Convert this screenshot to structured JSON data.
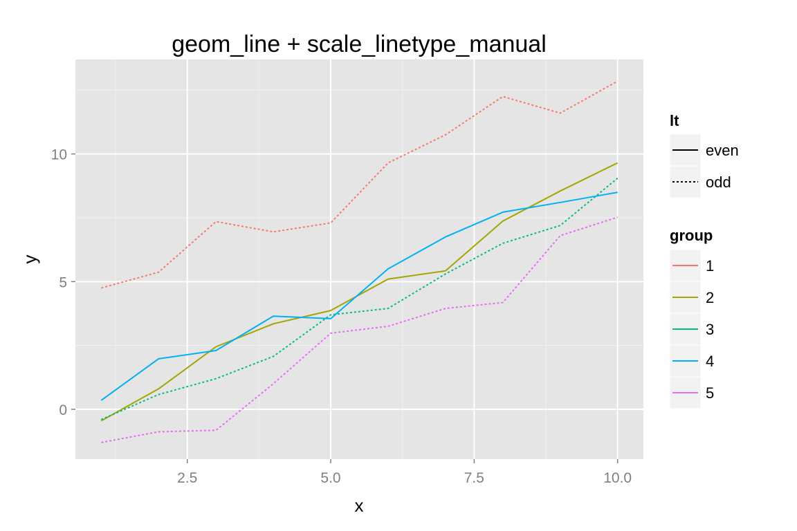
{
  "chart_data": {
    "type": "line",
    "title": "geom_line + scale_linetype_manual",
    "xlabel": "x",
    "ylabel": "y",
    "xlim": [
      0.55,
      10.45
    ],
    "ylim": [
      -1.95,
      13.7
    ],
    "x_ticks": [
      2.5,
      5.0,
      7.5,
      10.0
    ],
    "x_tick_labels": [
      "2.5",
      "5.0",
      "7.5",
      "10.0"
    ],
    "y_ticks": [
      0,
      5,
      10
    ],
    "y_tick_labels": [
      "0",
      "5",
      "10"
    ],
    "grid": true,
    "x": [
      1,
      2,
      3,
      4,
      5,
      6,
      7,
      8,
      9,
      10
    ],
    "series": [
      {
        "name": "1",
        "linetype": "odd",
        "color": "#F8766D",
        "values": [
          4.75,
          5.37,
          7.35,
          6.95,
          7.3,
          9.65,
          10.75,
          12.25,
          11.6,
          12.85
        ]
      },
      {
        "name": "2",
        "linetype": "even",
        "color": "#A3A500",
        "values": [
          -0.45,
          0.8,
          2.45,
          3.35,
          3.87,
          5.1,
          5.42,
          7.37,
          8.55,
          9.65
        ]
      },
      {
        "name": "3",
        "linetype": "odd",
        "color": "#00BF7D",
        "values": [
          -0.4,
          0.58,
          1.2,
          2.07,
          3.7,
          3.95,
          5.3,
          6.5,
          7.2,
          9.05
        ]
      },
      {
        "name": "4",
        "linetype": "even",
        "color": "#00B0F6",
        "values": [
          0.35,
          1.98,
          2.3,
          3.65,
          3.55,
          5.5,
          6.75,
          7.72,
          8.1,
          8.5
        ]
      },
      {
        "name": "5",
        "linetype": "odd",
        "color": "#E76BF3",
        "values": [
          -1.3,
          -0.88,
          -0.82,
          1.0,
          2.98,
          3.25,
          3.95,
          4.18,
          6.8,
          7.52
        ]
      }
    ],
    "legends": [
      {
        "title": "lt",
        "items": [
          {
            "label": "even",
            "linetype": "solid"
          },
          {
            "label": "odd",
            "linetype": "dashed"
          }
        ]
      },
      {
        "title": "group",
        "items": [
          {
            "label": "1",
            "color": "#F8766D"
          },
          {
            "label": "2",
            "color": "#A3A500"
          },
          {
            "label": "3",
            "color": "#00BF7D"
          },
          {
            "label": "4",
            "color": "#00B0F6"
          },
          {
            "label": "5",
            "color": "#E76BF3"
          }
        ]
      }
    ],
    "legend_position": "right",
    "panel_color": "#E5E5E5",
    "grid_color": "#FFFFFF"
  }
}
